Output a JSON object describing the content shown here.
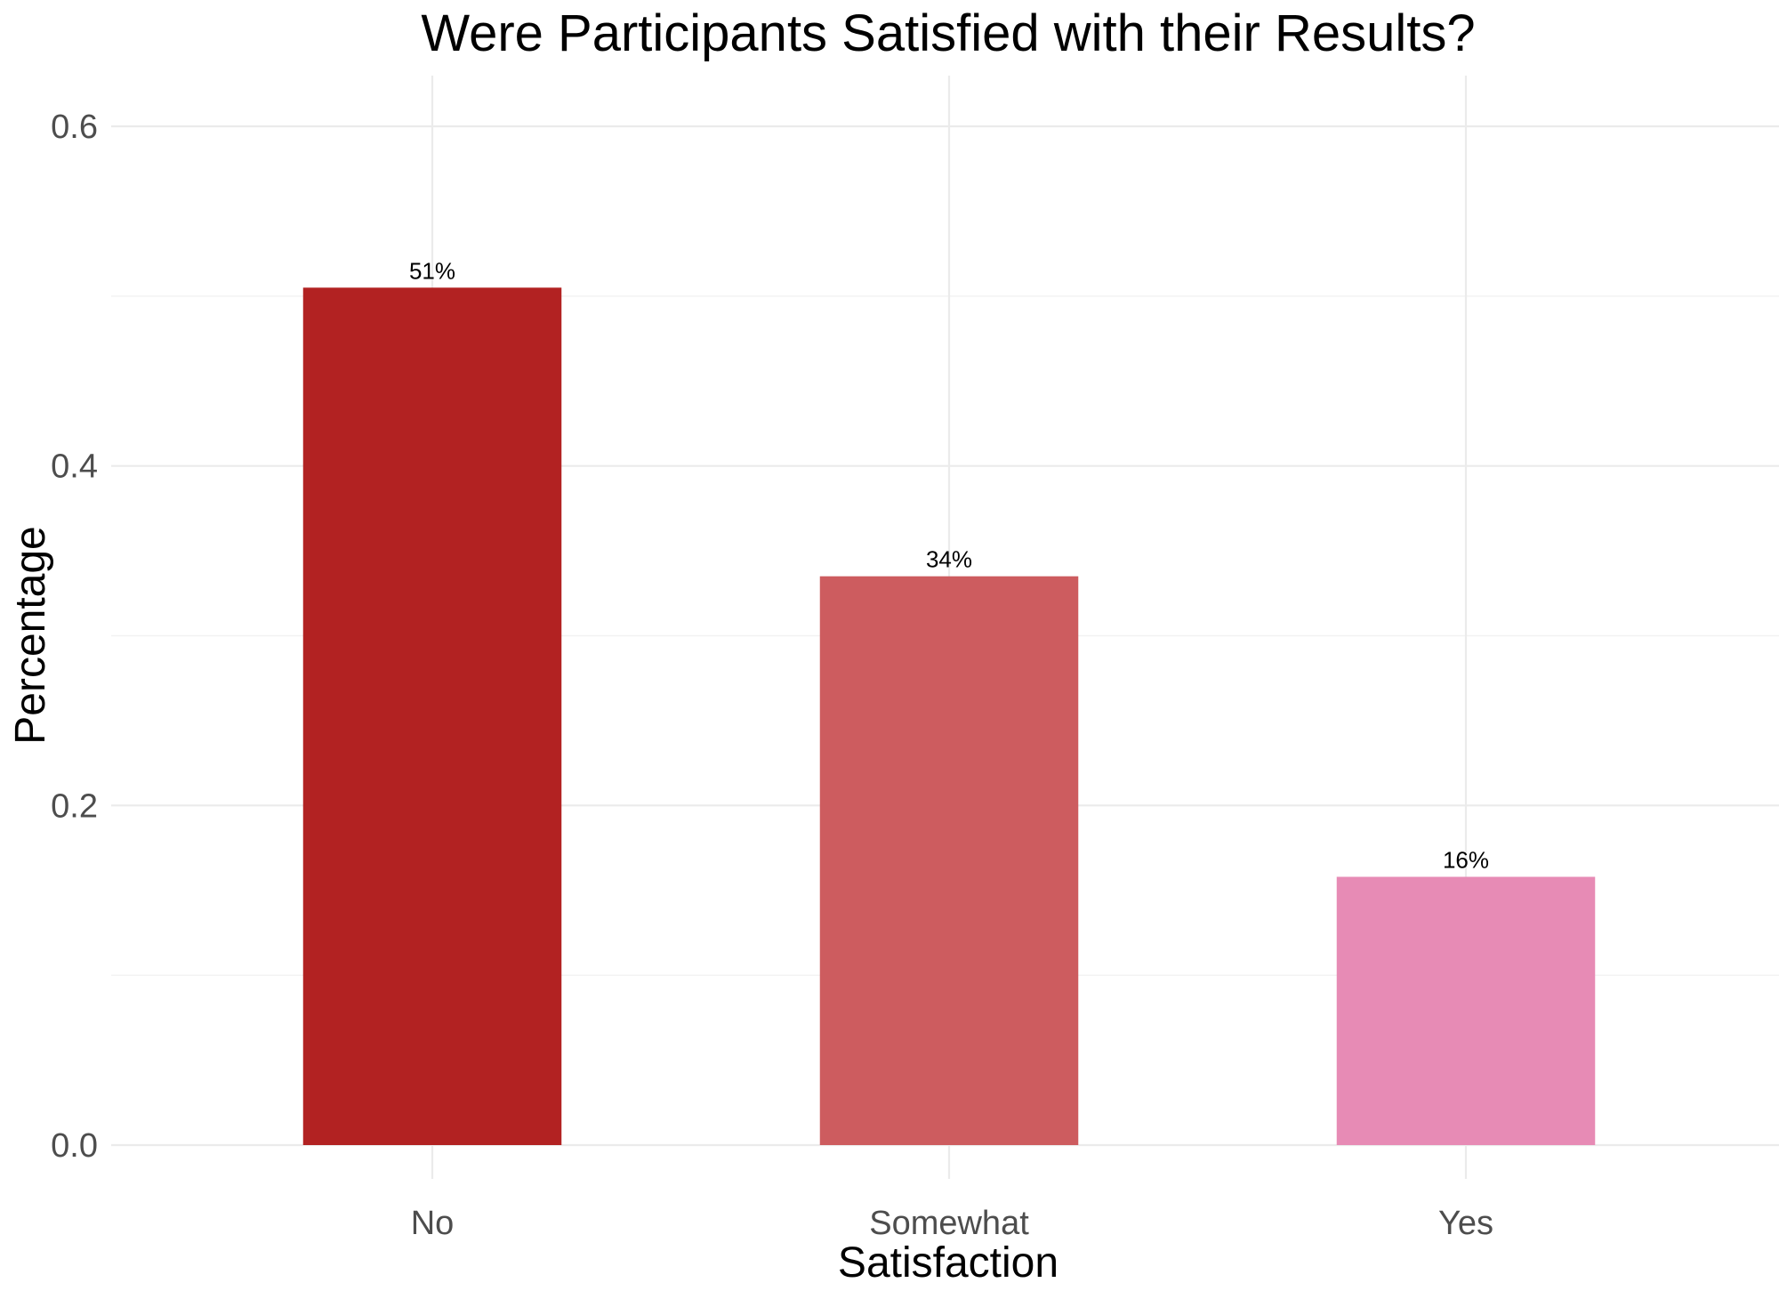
{
  "chart_data": {
    "type": "bar",
    "title": "Were Participants Satisfied with their Results?",
    "xlabel": "Satisfaction",
    "ylabel": "Percentage",
    "categories": [
      "No",
      "Somewhat",
      "Yes"
    ],
    "values": [
      0.505,
      0.335,
      0.158
    ],
    "data_labels": [
      "51%",
      "34%",
      "16%"
    ],
    "colors": [
      "#b22222",
      "#cd5c5f",
      "#e78bb5"
    ],
    "ylim": [
      0,
      0.6
    ],
    "yticks": [
      0.0,
      0.2,
      0.4,
      0.6
    ],
    "ytick_labels": [
      "0.0",
      "0.2",
      "0.4",
      "0.6"
    ],
    "grid": true,
    "legend": "none"
  }
}
